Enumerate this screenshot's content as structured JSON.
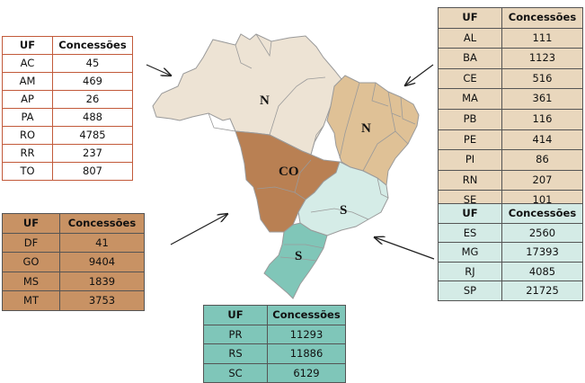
{
  "map": {
    "region_labels": {
      "norte": "N",
      "nordeste": "N",
      "centro_oeste": "CO",
      "sudeste": "S",
      "sul": "S"
    },
    "colors": {
      "norte": "#ede3d4",
      "nordeste": "#dfc196",
      "centro_oeste": "#b98053",
      "sudeste": "#d5ece7",
      "sul": "#80c6b8",
      "border": "#9a9a9a"
    }
  },
  "tables": {
    "norte": {
      "header": {
        "uf": "UF",
        "concessoes": "Concessões"
      },
      "rows": [
        {
          "uf": "AC",
          "value": "45"
        },
        {
          "uf": "AM",
          "value": "469"
        },
        {
          "uf": "AP",
          "value": "26"
        },
        {
          "uf": "PA",
          "value": "488"
        },
        {
          "uf": "RO",
          "value": "4785"
        },
        {
          "uf": "RR",
          "value": "237"
        },
        {
          "uf": "TO",
          "value": "807"
        }
      ]
    },
    "nordeste": {
      "header": {
        "uf": "UF",
        "concessoes": "Concessões"
      },
      "rows": [
        {
          "uf": "AL",
          "value": "111"
        },
        {
          "uf": "BA",
          "value": "1123"
        },
        {
          "uf": "CE",
          "value": "516"
        },
        {
          "uf": "MA",
          "value": "361"
        },
        {
          "uf": "PB",
          "value": "116"
        },
        {
          "uf": "PE",
          "value": "414"
        },
        {
          "uf": "PI",
          "value": "86"
        },
        {
          "uf": "RN",
          "value": "207"
        },
        {
          "uf": "SE",
          "value": "101"
        }
      ]
    },
    "centro_oeste": {
      "header": {
        "uf": "UF",
        "concessoes": "Concessões"
      },
      "rows": [
        {
          "uf": "DF",
          "value": "41"
        },
        {
          "uf": "GO",
          "value": "9404"
        },
        {
          "uf": "MS",
          "value": "1839"
        },
        {
          "uf": "MT",
          "value": "3753"
        }
      ]
    },
    "sudeste": {
      "header": {
        "uf": "UF",
        "concessoes": "Concessões"
      },
      "rows": [
        {
          "uf": "ES",
          "value": "2560"
        },
        {
          "uf": "MG",
          "value": "17393"
        },
        {
          "uf": "RJ",
          "value": "4085"
        },
        {
          "uf": "SP",
          "value": "21725"
        }
      ]
    },
    "sul": {
      "header": {
        "uf": "UF",
        "concessoes": "Concessões"
      },
      "rows": [
        {
          "uf": "PR",
          "value": "11293"
        },
        {
          "uf": "RS",
          "value": "11886"
        },
        {
          "uf": "SC",
          "value": "6129"
        }
      ]
    }
  }
}
